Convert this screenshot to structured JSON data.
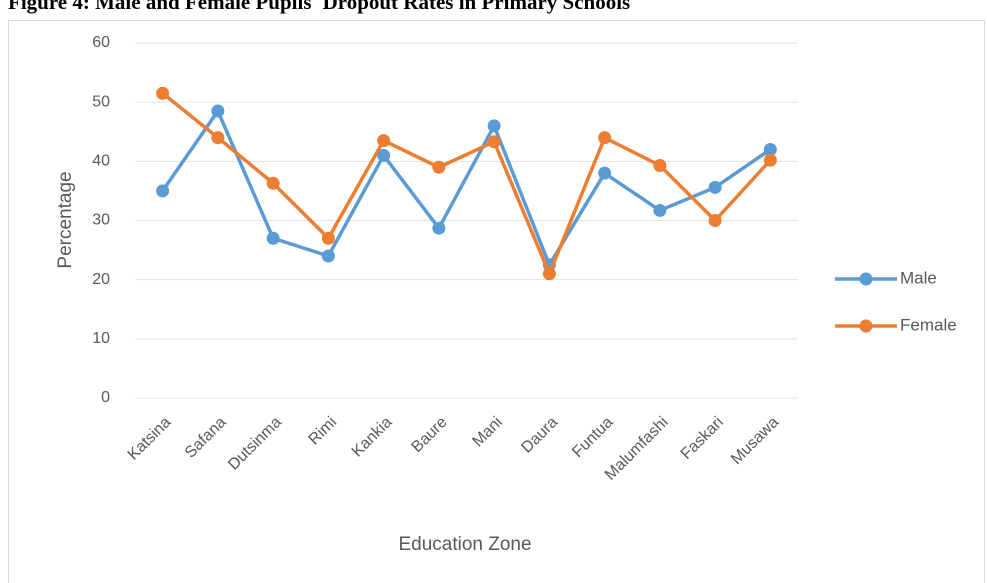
{
  "chart_data": {
    "type": "line",
    "title": "Figure 4: Male and Female Pupils' Dropout Rates in Primary Schools",
    "x_label": "Education Zone",
    "y_label": "Percentage",
    "categories": [
      "Katsina",
      "Safana",
      "Dutsinma",
      "Rimi",
      "Kankia",
      "Baure",
      "Mani",
      "Daura",
      "Funtua",
      "Malumfashi",
      "Faskari",
      "Musawa"
    ],
    "series": [
      {
        "name": "Male",
        "color": "#5b9bd5",
        "values": [
          35,
          48.5,
          27,
          24,
          41,
          28.7,
          46,
          22.5,
          38,
          31.7,
          35.6,
          42
        ]
      },
      {
        "name": "Female",
        "color": "#ed7d31",
        "values": [
          51.5,
          44,
          36.3,
          27,
          43.5,
          39,
          43.3,
          21,
          44,
          39.3,
          30,
          40.2
        ]
      }
    ],
    "ylim": [
      0,
      60
    ],
    "yticks": [
      0,
      10,
      20,
      30,
      40,
      50,
      60
    ],
    "grid": true,
    "legend": "right"
  }
}
